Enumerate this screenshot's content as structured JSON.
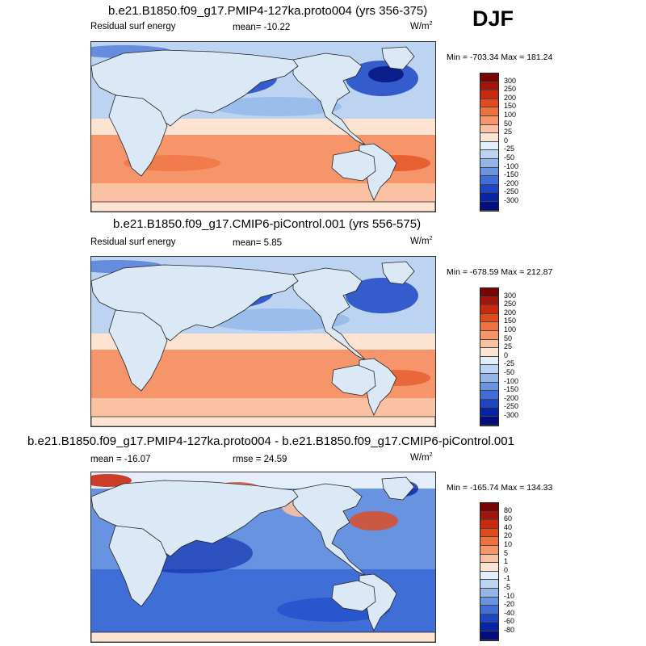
{
  "season": "DJF",
  "panels": [
    {
      "title": "b.e21.B1850.f09_g17.PMIP4-127ka.proto004 (yrs 356-375)",
      "left_label": "Residual surf energy",
      "center_label": "mean= -10.22",
      "units_base": "W/m",
      "units_sup": "2",
      "minmax": "Min = -703.34 Max = 181.24",
      "colorbar": {
        "levels": [
          "300",
          "250",
          "200",
          "150",
          "100",
          "50",
          "25",
          "0",
          "-25",
          "-50",
          "-100",
          "-150",
          "-200",
          "-250",
          "-300"
        ],
        "colors": [
          "#7a0403",
          "#a3140a",
          "#c9290f",
          "#e34a1b",
          "#f0703e",
          "#f6956a",
          "#f9c1a2",
          "#fde4d2",
          "#e3eefa",
          "#bcd4f2",
          "#92b6ea",
          "#6793e0",
          "#3f6fd6",
          "#1c46c6",
          "#0724a8",
          "#030f7c"
        ]
      }
    },
    {
      "title": "b.e21.B1850.f09_g17.CMIP6-piControl.001 (yrs 556-575)",
      "left_label": "Residual surf energy",
      "center_label": "mean=   5.85",
      "units_base": "W/m",
      "units_sup": "2",
      "minmax": "Min = -678.59 Max = 212.87",
      "colorbar": {
        "levels": [
          "300",
          "250",
          "200",
          "150",
          "100",
          "50",
          "25",
          "0",
          "-25",
          "-50",
          "-100",
          "-150",
          "-200",
          "-250",
          "-300"
        ],
        "colors": [
          "#7a0403",
          "#a3140a",
          "#c9290f",
          "#e34a1b",
          "#f0703e",
          "#f6956a",
          "#f9c1a2",
          "#fde4d2",
          "#e3eefa",
          "#bcd4f2",
          "#92b6ea",
          "#6793e0",
          "#3f6fd6",
          "#1c46c6",
          "#0724a8",
          "#030f7c"
        ]
      }
    },
    {
      "title": "b.e21.B1850.f09_g17.PMIP4-127ka.proto004 - b.e21.B1850.f09_g17.CMIP6-piControl.001",
      "left_label": "mean = -16.07",
      "center_label": "rmse =  24.59",
      "units_base": "W/m",
      "units_sup": "2",
      "minmax": "Min = -165.74 Max = 134.33",
      "colorbar": {
        "levels": [
          "80",
          "60",
          "40",
          "20",
          "10",
          "5",
          "1",
          "0",
          "-1",
          "-5",
          "-10",
          "-20",
          "-40",
          "-60",
          "-80"
        ],
        "colors": [
          "#7a0403",
          "#a3140a",
          "#c9290f",
          "#e34a1b",
          "#f0703e",
          "#f6956a",
          "#f9c1a2",
          "#fde4d2",
          "#e3eefa",
          "#bcd4f2",
          "#92b6ea",
          "#6793e0",
          "#3f6fd6",
          "#1c46c6",
          "#0724a8",
          "#030f7c"
        ]
      }
    }
  ]
}
